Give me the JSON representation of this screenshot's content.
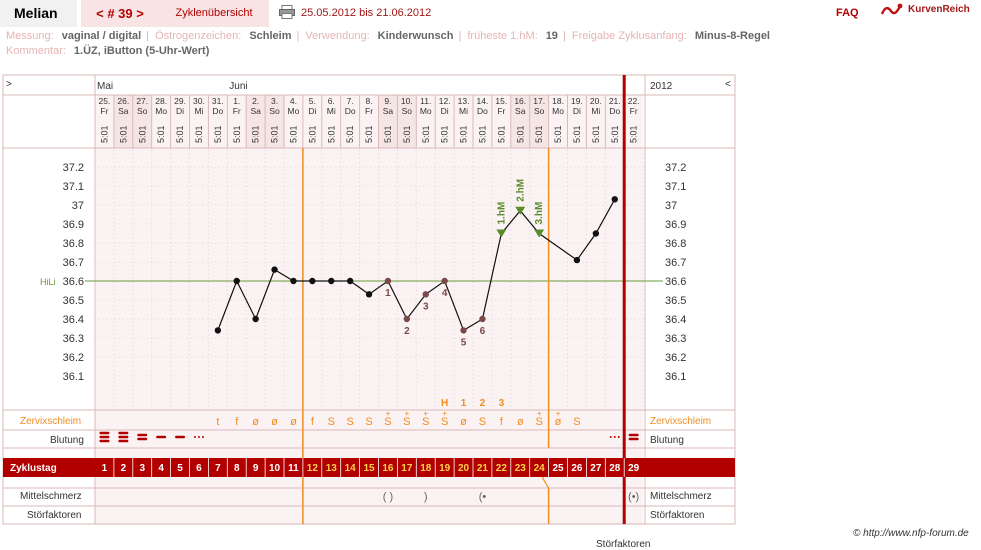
{
  "header": {
    "app_name": "Melian",
    "cycle_nav": "< # 39 >",
    "cycle_overview": "Zyklenübersicht",
    "print_icon": "printer-icon",
    "date_range": "25.05.2012 bis 21.06.2012",
    "faq": "FAQ",
    "brand_icon": "kurvenreich-logo",
    "brand": "KurvenReich"
  },
  "meta": {
    "messung_label": "Messung:",
    "messung_value": "vaginal / digital",
    "oestrogen_label": "Östrogenzeichen:",
    "oestrogen_value": "Schleim",
    "verwendung_label": "Verwendung:",
    "verwendung_value": "Kinderwunsch",
    "frueheste_label": "früheste 1.hM:",
    "frueheste_value": "19",
    "freigabe_label": "Freigabe Zyklusanfang:",
    "freigabe_value": "Minus-8-Regel",
    "kommentar_label": "Kommentar:",
    "kommentar_value": "1.ÜZ, iButton (5-Uhr-Wert)"
  },
  "chart_data": {
    "type": "line",
    "title": "",
    "nav_prev": ">",
    "nav_next": "<",
    "year": "2012",
    "months": [
      {
        "label": "Mai",
        "col": 0
      },
      {
        "label": "Juni",
        "col": 7
      }
    ],
    "days": [
      {
        "date": "25.",
        "wd": "Fr",
        "time": "5:01",
        "cd": 1,
        "we": false
      },
      {
        "date": "26.",
        "wd": "Sa",
        "time": "5:01",
        "cd": 2,
        "we": true
      },
      {
        "date": "27.",
        "wd": "So",
        "time": "5:01",
        "cd": 3,
        "we": true
      },
      {
        "date": "28.",
        "wd": "Mo",
        "time": "5:01",
        "cd": 4,
        "we": false
      },
      {
        "date": "29.",
        "wd": "Di",
        "time": "5:01",
        "cd": 5,
        "we": false
      },
      {
        "date": "30.",
        "wd": "Mi",
        "time": "5:01",
        "cd": 6,
        "we": false
      },
      {
        "date": "31.",
        "wd": "Do",
        "time": "5:01",
        "cd": 7,
        "we": false
      },
      {
        "date": "1.",
        "wd": "Fr",
        "time": "5:01",
        "cd": 8,
        "we": false
      },
      {
        "date": "2.",
        "wd": "Sa",
        "time": "5:01",
        "cd": 9,
        "we": true
      },
      {
        "date": "3.",
        "wd": "So",
        "time": "5:01",
        "cd": 10,
        "we": true
      },
      {
        "date": "4.",
        "wd": "Mo",
        "time": "5:01",
        "cd": 11,
        "we": false
      },
      {
        "date": "5.",
        "wd": "Di",
        "time": "5:01",
        "cd": 12,
        "we": false
      },
      {
        "date": "6.",
        "wd": "Mi",
        "time": "5:01",
        "cd": 13,
        "we": false
      },
      {
        "date": "7.",
        "wd": "Do",
        "time": "5:01",
        "cd": 14,
        "we": false
      },
      {
        "date": "8.",
        "wd": "Fr",
        "time": "5:01",
        "cd": 15,
        "we": false
      },
      {
        "date": "9.",
        "wd": "Sa",
        "time": "5:01",
        "cd": 16,
        "we": true
      },
      {
        "date": "10.",
        "wd": "So",
        "time": "5:01",
        "cd": 17,
        "we": true
      },
      {
        "date": "11.",
        "wd": "Mo",
        "time": "5:01",
        "cd": 18,
        "we": false
      },
      {
        "date": "12.",
        "wd": "Di",
        "time": "5:01",
        "cd": 19,
        "we": false
      },
      {
        "date": "13.",
        "wd": "Mi",
        "time": "5:01",
        "cd": 20,
        "we": false
      },
      {
        "date": "14.",
        "wd": "Do",
        "time": "5:01",
        "cd": 21,
        "we": false
      },
      {
        "date": "15.",
        "wd": "Fr",
        "time": "5:01",
        "cd": 22,
        "we": false
      },
      {
        "date": "16.",
        "wd": "Sa",
        "time": "5:01",
        "cd": 23,
        "we": true
      },
      {
        "date": "17.",
        "wd": "So",
        "time": "5:01",
        "cd": 24,
        "we": true
      },
      {
        "date": "18.",
        "wd": "Mo",
        "time": "5:01",
        "cd": 25,
        "we": false
      },
      {
        "date": "19.",
        "wd": "Di",
        "time": "5:01",
        "cd": 26,
        "we": false
      },
      {
        "date": "20.",
        "wd": "Mi",
        "time": "5:01",
        "cd": 27,
        "we": false
      },
      {
        "date": "21.",
        "wd": "Do",
        "time": "5:01",
        "cd": 28,
        "we": false
      },
      {
        "date": "22.",
        "wd": "Fr",
        "time": "5:01",
        "cd": 29,
        "we": false
      }
    ],
    "y_ticks": [
      "37.2",
      "37.1",
      "37",
      "36.9",
      "36.8",
      "36.7",
      "36.6",
      "36.5",
      "36.4",
      "36.3",
      "36.2",
      "36.1"
    ],
    "ylim": [
      36.0,
      37.3
    ],
    "coverline": {
      "label": "HiLi",
      "value": 36.6
    },
    "temps": [
      null,
      null,
      null,
      null,
      null,
      null,
      36.34,
      36.6,
      36.4,
      36.66,
      36.6,
      36.6,
      36.6,
      36.6,
      36.53,
      36.6,
      36.4,
      36.53,
      36.6,
      36.34,
      36.4,
      36.85,
      36.97,
      36.85,
      null,
      36.71,
      36.85,
      37.03,
      null
    ],
    "low_labels": [
      {
        "col": 15,
        "text": "1"
      },
      {
        "col": 16,
        "text": "2"
      },
      {
        "col": 17,
        "text": "3"
      },
      {
        "col": 18,
        "text": "4"
      },
      {
        "col": 19,
        "text": "5"
      },
      {
        "col": 20,
        "text": "6"
      }
    ],
    "high_labels": [
      {
        "col": 21,
        "text": "1.hM"
      },
      {
        "col": 22,
        "text": "2.hM"
      },
      {
        "col": 23,
        "text": "3.hM"
      }
    ],
    "peak_labels": [
      {
        "col": 18,
        "text": "H"
      },
      {
        "col": 19,
        "text": "1"
      },
      {
        "col": 20,
        "text": "2"
      },
      {
        "col": 21,
        "text": "3"
      }
    ],
    "mucus_label": "Zervixschleim",
    "mucus": [
      "",
      "",
      "",
      "",
      "",
      "",
      "t",
      "f",
      "ø",
      "ø",
      "ø",
      "f",
      "S",
      "S",
      "S",
      "S",
      "S",
      "S",
      "S",
      "ø",
      "S",
      "f",
      "ø",
      "S",
      "ø",
      "S",
      "",
      "",
      ""
    ],
    "mucus_plus": [
      15,
      16,
      17,
      18,
      23,
      24
    ],
    "bleeding_label": "Blutung",
    "bleeding": [
      3,
      3,
      2,
      1,
      1,
      0.5,
      0,
      0,
      0,
      0,
      0,
      0,
      0,
      0,
      0,
      0,
      0,
      0,
      0,
      0,
      0,
      0,
      0,
      0,
      0,
      0,
      0,
      0.5,
      2
    ],
    "cycle_label": "Zyklustag",
    "pain_label": "Mittelschmerz",
    "pain": [
      {
        "col": 15,
        "text": "( )"
      },
      {
        "col": 17,
        "text": ")"
      },
      {
        "col": 20,
        "text": "(•"
      },
      {
        "col": 28,
        "text": "(•)"
      }
    ],
    "disturb_label": "Störfaktoren",
    "colors": {
      "accent": "#b20000",
      "weekend": "#f6e5e5",
      "grid": "#d8b8b8",
      "orange": "#f28c1e",
      "coverline": "#6b9a3a",
      "low": "#7a4a4a",
      "high": "#5b8c2a"
    }
  },
  "footer": {
    "copyright": "© http://www.nfp-forum.de",
    "cut": "Störfaktoren"
  }
}
